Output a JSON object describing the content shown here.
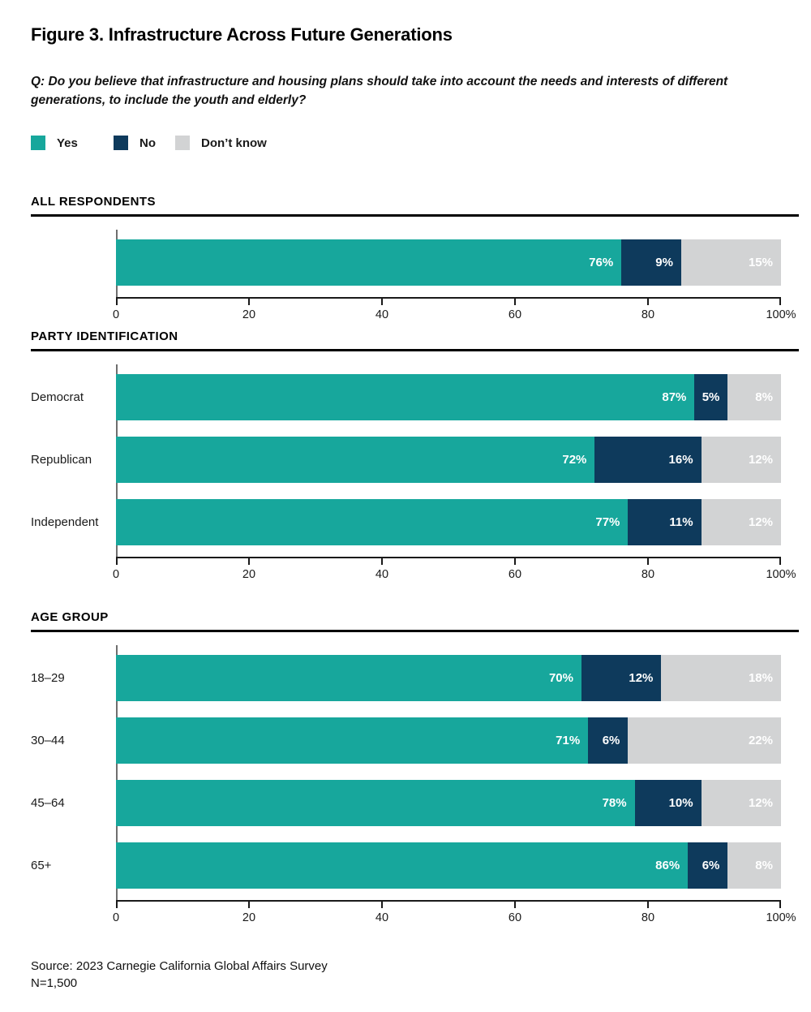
{
  "title": "Figure 3. Infrastructure Across Future Generations",
  "question": "Q: Do you believe that infrastructure and housing plans should take into account the needs and interests of different generations, to include the youth and elderly?",
  "legend": {
    "items": [
      {
        "label": "Yes",
        "color": "#17a79c"
      },
      {
        "label": "No",
        "color": "#0e3a5c"
      },
      {
        "label": "Don’t know",
        "color": "#d2d3d4"
      }
    ]
  },
  "colors": {
    "yes": "#17a79c",
    "no": "#0e3a5c",
    "dont_know": "#d2d3d4",
    "axis_line": "#1a1a1a",
    "y_axis_line": "#6e6e6e",
    "section_rule": "#000000",
    "bar_label_text": "#ffffff"
  },
  "axis": {
    "tick_labels": [
      "0",
      "20",
      "40",
      "60",
      "80",
      "100%"
    ],
    "tick_values": [
      0,
      20,
      40,
      60,
      80,
      100
    ]
  },
  "chart_data": [
    {
      "type": "bar",
      "orientation": "horizontal",
      "stacked": true,
      "section_title": "ALL RESPONDENTS",
      "categories": [
        ""
      ],
      "series": [
        {
          "name": "Yes",
          "values": [
            76
          ]
        },
        {
          "name": "No",
          "values": [
            9
          ]
        },
        {
          "name": "Don’t know",
          "values": [
            15
          ]
        }
      ],
      "xlim": [
        0,
        100
      ],
      "grid": false,
      "legend_position": "top"
    },
    {
      "type": "bar",
      "orientation": "horizontal",
      "stacked": true,
      "section_title": "PARTY IDENTIFICATION",
      "categories": [
        "Democrat",
        "Republican",
        "Independent"
      ],
      "series": [
        {
          "name": "Yes",
          "values": [
            87,
            72,
            77
          ]
        },
        {
          "name": "No",
          "values": [
            5,
            16,
            11
          ]
        },
        {
          "name": "Don’t know",
          "values": [
            8,
            12,
            12
          ]
        }
      ],
      "xlim": [
        0,
        100
      ],
      "grid": false,
      "legend_position": "top"
    },
    {
      "type": "bar",
      "orientation": "horizontal",
      "stacked": true,
      "section_title": "AGE GROUP",
      "categories": [
        "18–29",
        "30–44",
        "45–64",
        "65+"
      ],
      "series": [
        {
          "name": "Yes",
          "values": [
            70,
            71,
            78,
            86
          ]
        },
        {
          "name": "No",
          "values": [
            12,
            6,
            10,
            6
          ]
        },
        {
          "name": "Don’t know",
          "values": [
            18,
            22,
            12,
            8
          ]
        }
      ],
      "xlim": [
        0,
        100
      ],
      "grid": false,
      "legend_position": "top"
    }
  ],
  "source": {
    "line1": "Source: 2023 Carnegie California Global Affairs Survey",
    "line2": "N=1,500"
  }
}
